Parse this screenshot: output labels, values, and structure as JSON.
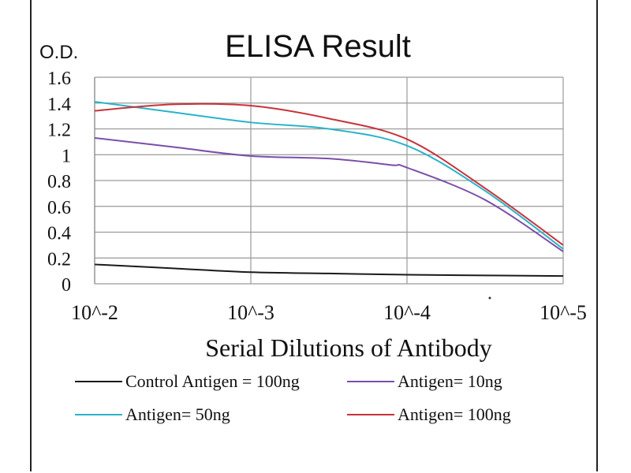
{
  "chart_data": {
    "type": "line",
    "title": "ELISA Result",
    "ylabel": "O.D.",
    "xlabel": "Serial  Dilutions  of Antibody",
    "x_ticks": [
      "10^-2",
      "10^-3",
      "10^-4",
      "10^-5"
    ],
    "x": [
      -2,
      -3,
      -4,
      -5
    ],
    "y_ticks": [
      "1.6",
      "1.4",
      "1.2",
      "1",
      "0.8",
      "0.6",
      "0.4",
      "0.2",
      "0"
    ],
    "ylim": [
      0,
      1.6
    ],
    "xlim": [
      -2,
      -5
    ],
    "x_scale": "log",
    "grid": true,
    "legend_position": "bottom",
    "series": [
      {
        "name": "Control Antigen = 100ng",
        "color": "#1a1a1a",
        "points": [
          [
            -2,
            0.15
          ],
          [
            -2.5,
            0.12
          ],
          [
            -3,
            0.09
          ],
          [
            -3.5,
            0.08
          ],
          [
            -4,
            0.07
          ],
          [
            -4.5,
            0.065
          ],
          [
            -5,
            0.06
          ]
        ]
      },
      {
        "name": "Antigen= 10ng",
        "color": "#7a4fa8",
        "points": [
          [
            -2,
            1.13
          ],
          [
            -2.5,
            1.06
          ],
          [
            -3,
            0.99
          ],
          [
            -3.5,
            0.97
          ],
          [
            -3.9,
            0.92
          ],
          [
            -4,
            0.9
          ],
          [
            -4.5,
            0.65
          ],
          [
            -5,
            0.25
          ]
        ]
      },
      {
        "name": "Antigen= 50ng",
        "color": "#29b3c9",
        "points": [
          [
            -2,
            1.41
          ],
          [
            -2.5,
            1.33
          ],
          [
            -3,
            1.25
          ],
          [
            -3.5,
            1.2
          ],
          [
            -4,
            1.07
          ],
          [
            -4.5,
            0.72
          ],
          [
            -5,
            0.27
          ]
        ]
      },
      {
        "name": "Antigen= 100ng",
        "color": "#c8323a",
        "points": [
          [
            -2,
            1.34
          ],
          [
            -2.5,
            1.39
          ],
          [
            -3,
            1.38
          ],
          [
            -3.5,
            1.28
          ],
          [
            -4,
            1.12
          ],
          [
            -4.5,
            0.74
          ],
          [
            -5,
            0.3
          ]
        ]
      }
    ]
  }
}
